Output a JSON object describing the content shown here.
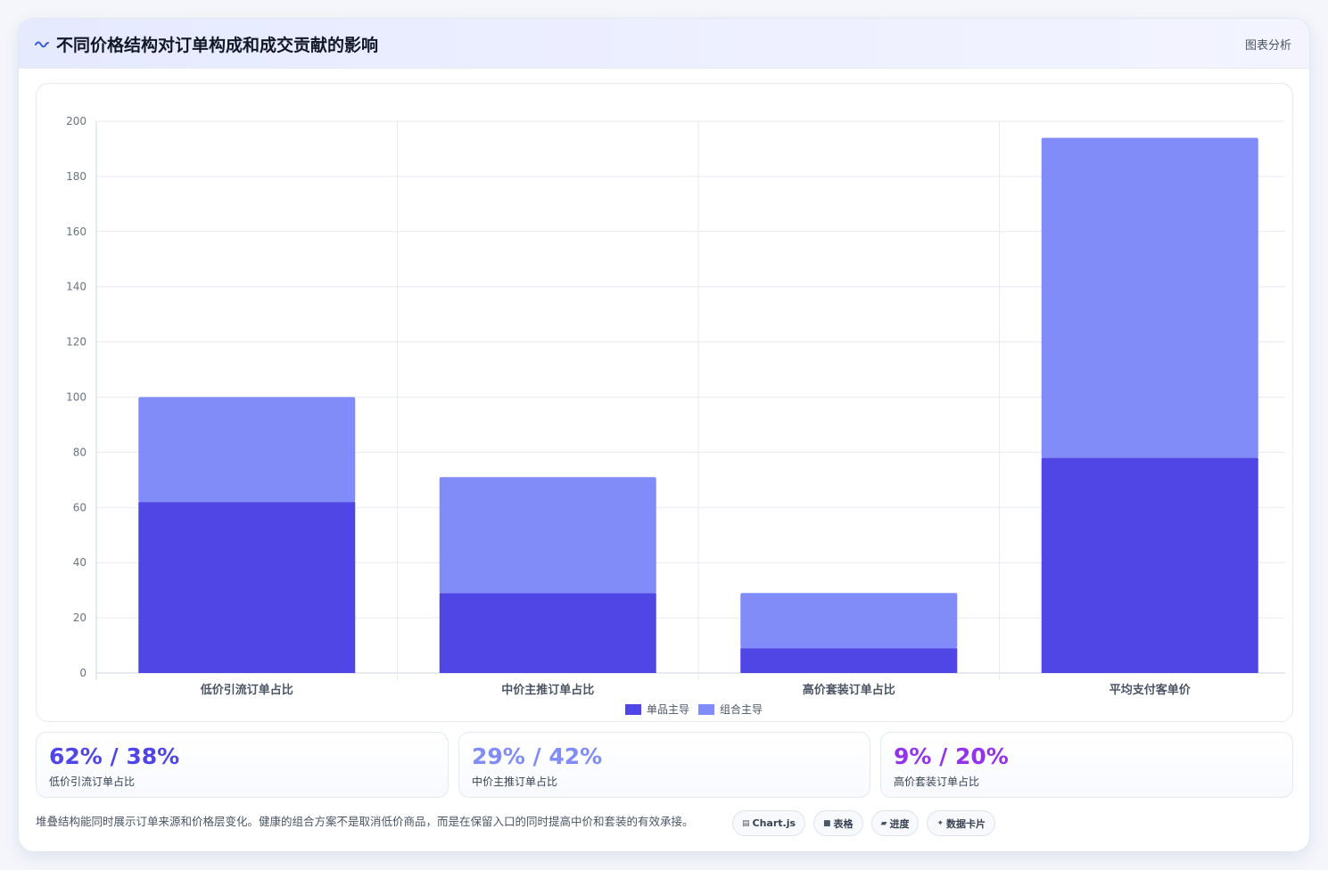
{
  "header": {
    "icon": "wave-icon",
    "title": "不同价格结构对订单构成和成交贡献的影响",
    "right_label": "图表分析"
  },
  "chart_data": {
    "type": "bar",
    "stacked": true,
    "categories": [
      "低价引流订单占比",
      "中价主推订单占比",
      "高价套装订单占比",
      "平均支付客单价"
    ],
    "series": [
      {
        "name": "单品主导",
        "values": [
          62,
          29,
          9,
          78
        ],
        "color": "#4f46e5"
      },
      {
        "name": "组合主导",
        "values": [
          38,
          42,
          20,
          116
        ],
        "color": "#818cf8"
      }
    ],
    "ylim": [
      0,
      200
    ],
    "yticks": [
      0,
      20,
      40,
      60,
      80,
      100,
      120,
      140,
      160,
      180,
      200
    ],
    "grid": true,
    "legend_position": "bottom-center"
  },
  "stats": [
    {
      "value": "62% / 38%",
      "label": "低价引流订单占比",
      "color": "#4f46e5"
    },
    {
      "value": "29% / 42%",
      "label": "中价主推订单占比",
      "color": "#818cf8"
    },
    {
      "value": "9% / 20%",
      "label": "高价套装订单占比",
      "color": "#9333ea"
    }
  ],
  "note": "堆叠结构能同时展示订单来源和价格层变化。健康的组合方案不是取消低价商品，而是在保留入口的同时提高中价和套装的有效承接。",
  "chips": [
    {
      "icon": "chart-icon",
      "glyph": "▤",
      "label": "Chart.js"
    },
    {
      "icon": "table-icon",
      "glyph": "■",
      "label": "表格"
    },
    {
      "icon": "progress-icon",
      "glyph": "▰",
      "label": "进度"
    },
    {
      "icon": "sparkle-icon",
      "glyph": "✦",
      "label": "数据卡片"
    }
  ]
}
